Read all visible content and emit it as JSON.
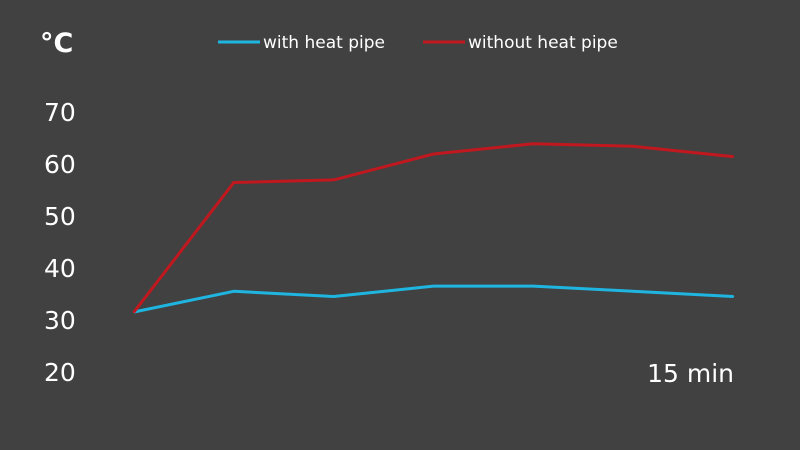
{
  "chart_data": {
    "type": "line",
    "y_unit_label": "°C",
    "yticks": [
      "70",
      "60",
      "50",
      "40",
      "30",
      "20"
    ],
    "ylim": [
      20,
      70
    ],
    "x_end_label": "15 min",
    "x": [
      0,
      1,
      2,
      3,
      4,
      5,
      6
    ],
    "series": [
      {
        "name": "with heat pipe",
        "color": "#1fb5e1",
        "values": [
          31,
          35,
          34,
          36,
          36,
          35,
          34
        ]
      },
      {
        "name": "without heat pipe",
        "color": "#c0181e",
        "values": [
          31,
          56,
          56.5,
          61.5,
          63.5,
          63,
          61
        ]
      }
    ],
    "grid": false,
    "legend": "top"
  }
}
